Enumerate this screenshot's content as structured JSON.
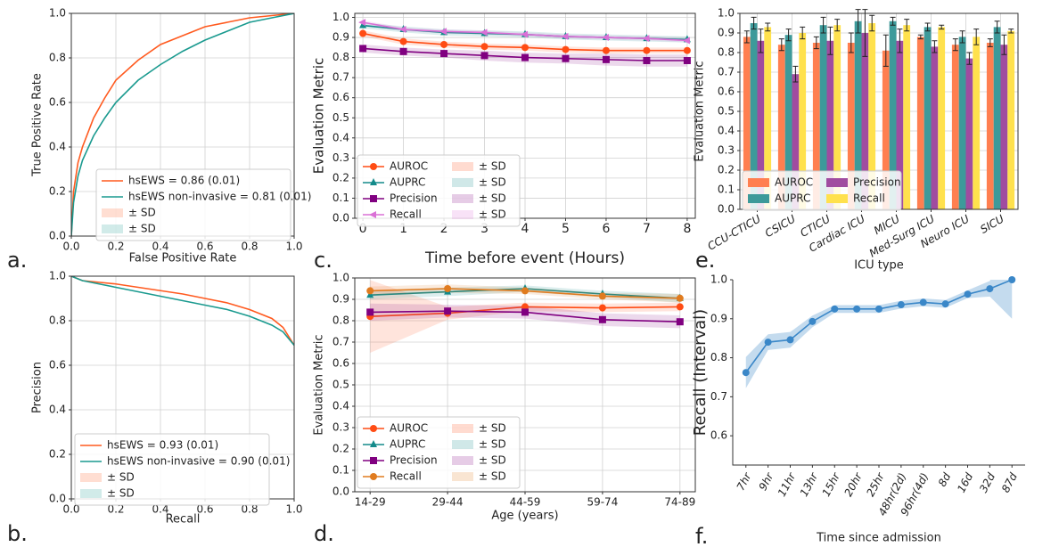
{
  "chart_data": [
    {
      "type": "line",
      "panel_label": "a.",
      "xlabel": "False Positive Rate",
      "ylabel": "True Positive Rate",
      "xlim": [
        0,
        1
      ],
      "ylim": [
        0,
        1
      ],
      "xticks": [
        {
          "value": 0,
          "label": "0.0"
        },
        0.2,
        0.4,
        0.6,
        0.8,
        {
          "value": 1,
          "label": "1.0"
        }
      ],
      "yticks": [
        {
          "value": 0,
          "label": "0.0"
        },
        0.2,
        0.4,
        0.6,
        0.8,
        {
          "value": 1,
          "label": "1.0"
        }
      ],
      "grid": true,
      "legend": "lower right",
      "x": [
        0,
        0.01,
        0.03,
        0.05,
        0.1,
        0.15,
        0.2,
        0.3,
        0.4,
        0.5,
        0.6,
        0.7,
        0.8,
        0.9,
        1
      ],
      "series": [
        {
          "name": "hsEWS = 0.86 (0.01)",
          "band_name": "± SD",
          "color": "#ff5a1f",
          "values": [
            0,
            0.2,
            0.33,
            0.4,
            0.53,
            0.62,
            0.7,
            0.79,
            0.86,
            0.9,
            0.94,
            0.96,
            0.98,
            0.99,
            1
          ]
        },
        {
          "name": "hsEWS non-invasive = 0.81 (0.01)",
          "band_name": "± SD",
          "color": "#1a9a8f",
          "values": [
            0,
            0.15,
            0.27,
            0.34,
            0.45,
            0.53,
            0.6,
            0.7,
            0.77,
            0.83,
            0.88,
            0.92,
            0.96,
            0.98,
            1
          ]
        }
      ]
    },
    {
      "type": "line",
      "panel_label": "b.",
      "xlabel": "Recall",
      "ylabel": "Precision",
      "xlim": [
        0,
        1
      ],
      "ylim": [
        0,
        1
      ],
      "xticks": [
        {
          "value": 0,
          "label": "0.0"
        },
        0.2,
        0.4,
        0.6,
        0.8,
        {
          "value": 1,
          "label": "1.0"
        }
      ],
      "yticks": [
        {
          "value": 0,
          "label": "0.0"
        },
        0.2,
        0.4,
        0.6,
        0.8,
        {
          "value": 1,
          "label": "1.0"
        }
      ],
      "grid": true,
      "legend": "lower left",
      "x": [
        0,
        0.05,
        0.1,
        0.2,
        0.3,
        0.4,
        0.5,
        0.6,
        0.7,
        0.8,
        0.9,
        0.95,
        1
      ],
      "series": [
        {
          "name": "hsEWS = 0.93 (0.01)",
          "band_name": "± SD",
          "color": "#ff5a1f",
          "values": [
            1,
            0.98,
            0.975,
            0.965,
            0.95,
            0.935,
            0.92,
            0.9,
            0.88,
            0.85,
            0.81,
            0.77,
            0.69
          ]
        },
        {
          "name": "hsEWS non-invasive = 0.90 (0.01)",
          "band_name": "± SD",
          "color": "#1a9a8f",
          "values": [
            1,
            0.98,
            0.97,
            0.95,
            0.93,
            0.91,
            0.89,
            0.87,
            0.85,
            0.82,
            0.78,
            0.75,
            0.69
          ]
        }
      ]
    },
    {
      "type": "line",
      "panel_label": "c.",
      "xlabel": "Time before event (Hours)",
      "ylabel": "Evaluation Metric",
      "xlim": [
        -0.2,
        8.2
      ],
      "ylim": [
        0,
        1.02
      ],
      "xticks": [
        0,
        1,
        2,
        3,
        4,
        5,
        6,
        7,
        8
      ],
      "yticks": [
        {
          "value": 0,
          "label": "0.0"
        },
        0.1,
        0.2,
        0.3,
        0.4,
        0.5,
        0.6,
        0.7,
        0.8,
        0.9,
        {
          "value": 1,
          "label": "1.0"
        }
      ],
      "grid": true,
      "legend": "lower left",
      "x": [
        0,
        1,
        2,
        3,
        4,
        5,
        6,
        7,
        8
      ],
      "series": [
        {
          "name": "AUROC",
          "band_name": "± SD",
          "color": "#ff4c14",
          "marker": "o",
          "values": [
            0.92,
            0.88,
            0.865,
            0.855,
            0.85,
            0.84,
            0.835,
            0.835,
            0.835
          ],
          "sd": [
            0.015,
            0.015,
            0.015,
            0.015,
            0.015,
            0.015,
            0.015,
            0.015,
            0.015
          ]
        },
        {
          "name": "AUPRC",
          "band_name": "± SD",
          "color": "#138a8a",
          "marker": "^",
          "values": [
            0.96,
            0.94,
            0.925,
            0.92,
            0.915,
            0.905,
            0.9,
            0.895,
            0.89
          ],
          "sd": [
            0.015,
            0.015,
            0.015,
            0.015,
            0.015,
            0.015,
            0.015,
            0.015,
            0.015
          ]
        },
        {
          "name": "Precision",
          "band_name": "± SD",
          "color": "#800080",
          "marker": "s",
          "values": [
            0.845,
            0.83,
            0.82,
            0.81,
            0.8,
            0.795,
            0.79,
            0.785,
            0.785
          ],
          "sd": [
            0.02,
            0.02,
            0.02,
            0.025,
            0.025,
            0.025,
            0.03,
            0.03,
            0.03
          ]
        },
        {
          "name": "Recall",
          "band_name": "± SD",
          "color": "#da70d6",
          "marker": "<",
          "values": [
            0.975,
            0.94,
            0.93,
            0.925,
            0.915,
            0.905,
            0.9,
            0.895,
            0.885
          ],
          "sd": [
            0.01,
            0.01,
            0.01,
            0.01,
            0.01,
            0.01,
            0.01,
            0.01,
            0.01
          ]
        }
      ]
    },
    {
      "type": "line",
      "panel_label": "d.",
      "xlabel": "Age (years)",
      "ylabel": "Evaluation Metric",
      "ylim": [
        0,
        1.0
      ],
      "categories": [
        "14-29",
        "29-44",
        "44-59",
        "59-74",
        "74-89"
      ],
      "yticks": [
        {
          "value": 0,
          "label": "0.0"
        },
        0.1,
        0.2,
        0.3,
        0.4,
        0.5,
        0.6,
        0.7,
        0.8,
        0.9,
        {
          "value": 1,
          "label": "1.0"
        }
      ],
      "grid": true,
      "legend": "lower left",
      "series": [
        {
          "name": "AUROC",
          "band_name": "± SD",
          "color": "#ff4c14",
          "marker": "o",
          "values": [
            0.82,
            0.835,
            0.865,
            0.86,
            0.865
          ],
          "sd": [
            0.17,
            0.03,
            0.02,
            0.02,
            0.02
          ]
        },
        {
          "name": "AUPRC",
          "band_name": "± SD",
          "color": "#138a8a",
          "marker": "^",
          "values": [
            0.92,
            0.935,
            0.95,
            0.925,
            0.905
          ],
          "sd": [
            0.02,
            0.02,
            0.015,
            0.015,
            0.02
          ]
        },
        {
          "name": "Precision",
          "band_name": "± SD",
          "color": "#800080",
          "marker": "s",
          "values": [
            0.84,
            0.845,
            0.84,
            0.805,
            0.795
          ],
          "sd": [
            0.04,
            0.03,
            0.03,
            0.03,
            0.03
          ]
        },
        {
          "name": "Recall",
          "band_name": "± SD",
          "color": "#e07b1f",
          "marker": "o",
          "values": [
            0.94,
            0.95,
            0.94,
            0.915,
            0.905
          ],
          "sd": [
            0.02,
            0.02,
            0.015,
            0.015,
            0.02
          ]
        }
      ]
    },
    {
      "type": "bar",
      "panel_label": "e.",
      "xlabel": "ICU type",
      "ylabel": "Evaluation Metric",
      "ylim": [
        0,
        1.0
      ],
      "categories": [
        "CCU-CTICU",
        "CSICU",
        "CTICU",
        "Cardiac ICU",
        "MICU",
        "Med-Surg ICU",
        "Neuro ICU",
        "SICU"
      ],
      "yticks": [
        {
          "value": 0,
          "label": "0.0"
        },
        0.1,
        0.2,
        0.3,
        0.4,
        0.5,
        0.6,
        0.7,
        0.8,
        0.9,
        {
          "value": 1,
          "label": "1.0"
        }
      ],
      "grid": true,
      "legend": "lower left",
      "series": [
        {
          "name": "AUROC",
          "color": "#ff7f50",
          "values": [
            0.88,
            0.84,
            0.85,
            0.85,
            0.81,
            0.88,
            0.84,
            0.85
          ],
          "errors": [
            0.03,
            0.03,
            0.03,
            0.05,
            0.08,
            0.01,
            0.03,
            0.02
          ]
        },
        {
          "name": "AUPRC",
          "color": "#3d9a9a",
          "values": [
            0.95,
            0.89,
            0.94,
            0.96,
            0.96,
            0.93,
            0.88,
            0.93
          ],
          "errors": [
            0.03,
            0.03,
            0.04,
            0.06,
            0.02,
            0.02,
            0.03,
            0.03
          ]
        },
        {
          "name": "Precision",
          "color": "#a04ca0",
          "values": [
            0.86,
            0.69,
            0.86,
            0.9,
            0.86,
            0.83,
            0.77,
            0.84
          ],
          "errors": [
            0.06,
            0.04,
            0.07,
            0.12,
            0.06,
            0.03,
            0.03,
            0.05
          ]
        },
        {
          "name": "Recall",
          "color": "#ffe14d",
          "values": [
            0.93,
            0.9,
            0.94,
            0.95,
            0.94,
            0.93,
            0.88,
            0.91
          ],
          "errors": [
            0.02,
            0.03,
            0.03,
            0.04,
            0.03,
            0.01,
            0.04,
            0.01
          ]
        }
      ]
    },
    {
      "type": "line",
      "panel_label": "f.",
      "xlabel": "Time since admission",
      "ylabel": "Recall (Interval)",
      "ylim": [
        0.525,
        1.0
      ],
      "categories": [
        "7hr",
        "9hr",
        "11hr",
        "13hr",
        "15hr",
        "20hr",
        "25hr",
        "48hr(2d)",
        "96hr(4d)",
        "8d",
        "16d",
        "32d",
        "87d"
      ],
      "yticks": [
        0.6,
        0.7,
        0.8,
        0.9,
        {
          "value": 1,
          "label": "1.0"
        }
      ],
      "grid": false,
      "series": [
        {
          "color": "#3a87c8",
          "marker": "o",
          "values": [
            0.762,
            0.84,
            0.846,
            0.893,
            0.925,
            0.925,
            0.925,
            0.936,
            0.942,
            0.938,
            0.963,
            0.977,
            1.0
          ],
          "sd": [
            0.04,
            0.02,
            0.02,
            0.015,
            0.01,
            0.01,
            0.01,
            0.01,
            0.01,
            0.01,
            0.01,
            0.02,
            0.1
          ]
        }
      ]
    }
  ]
}
